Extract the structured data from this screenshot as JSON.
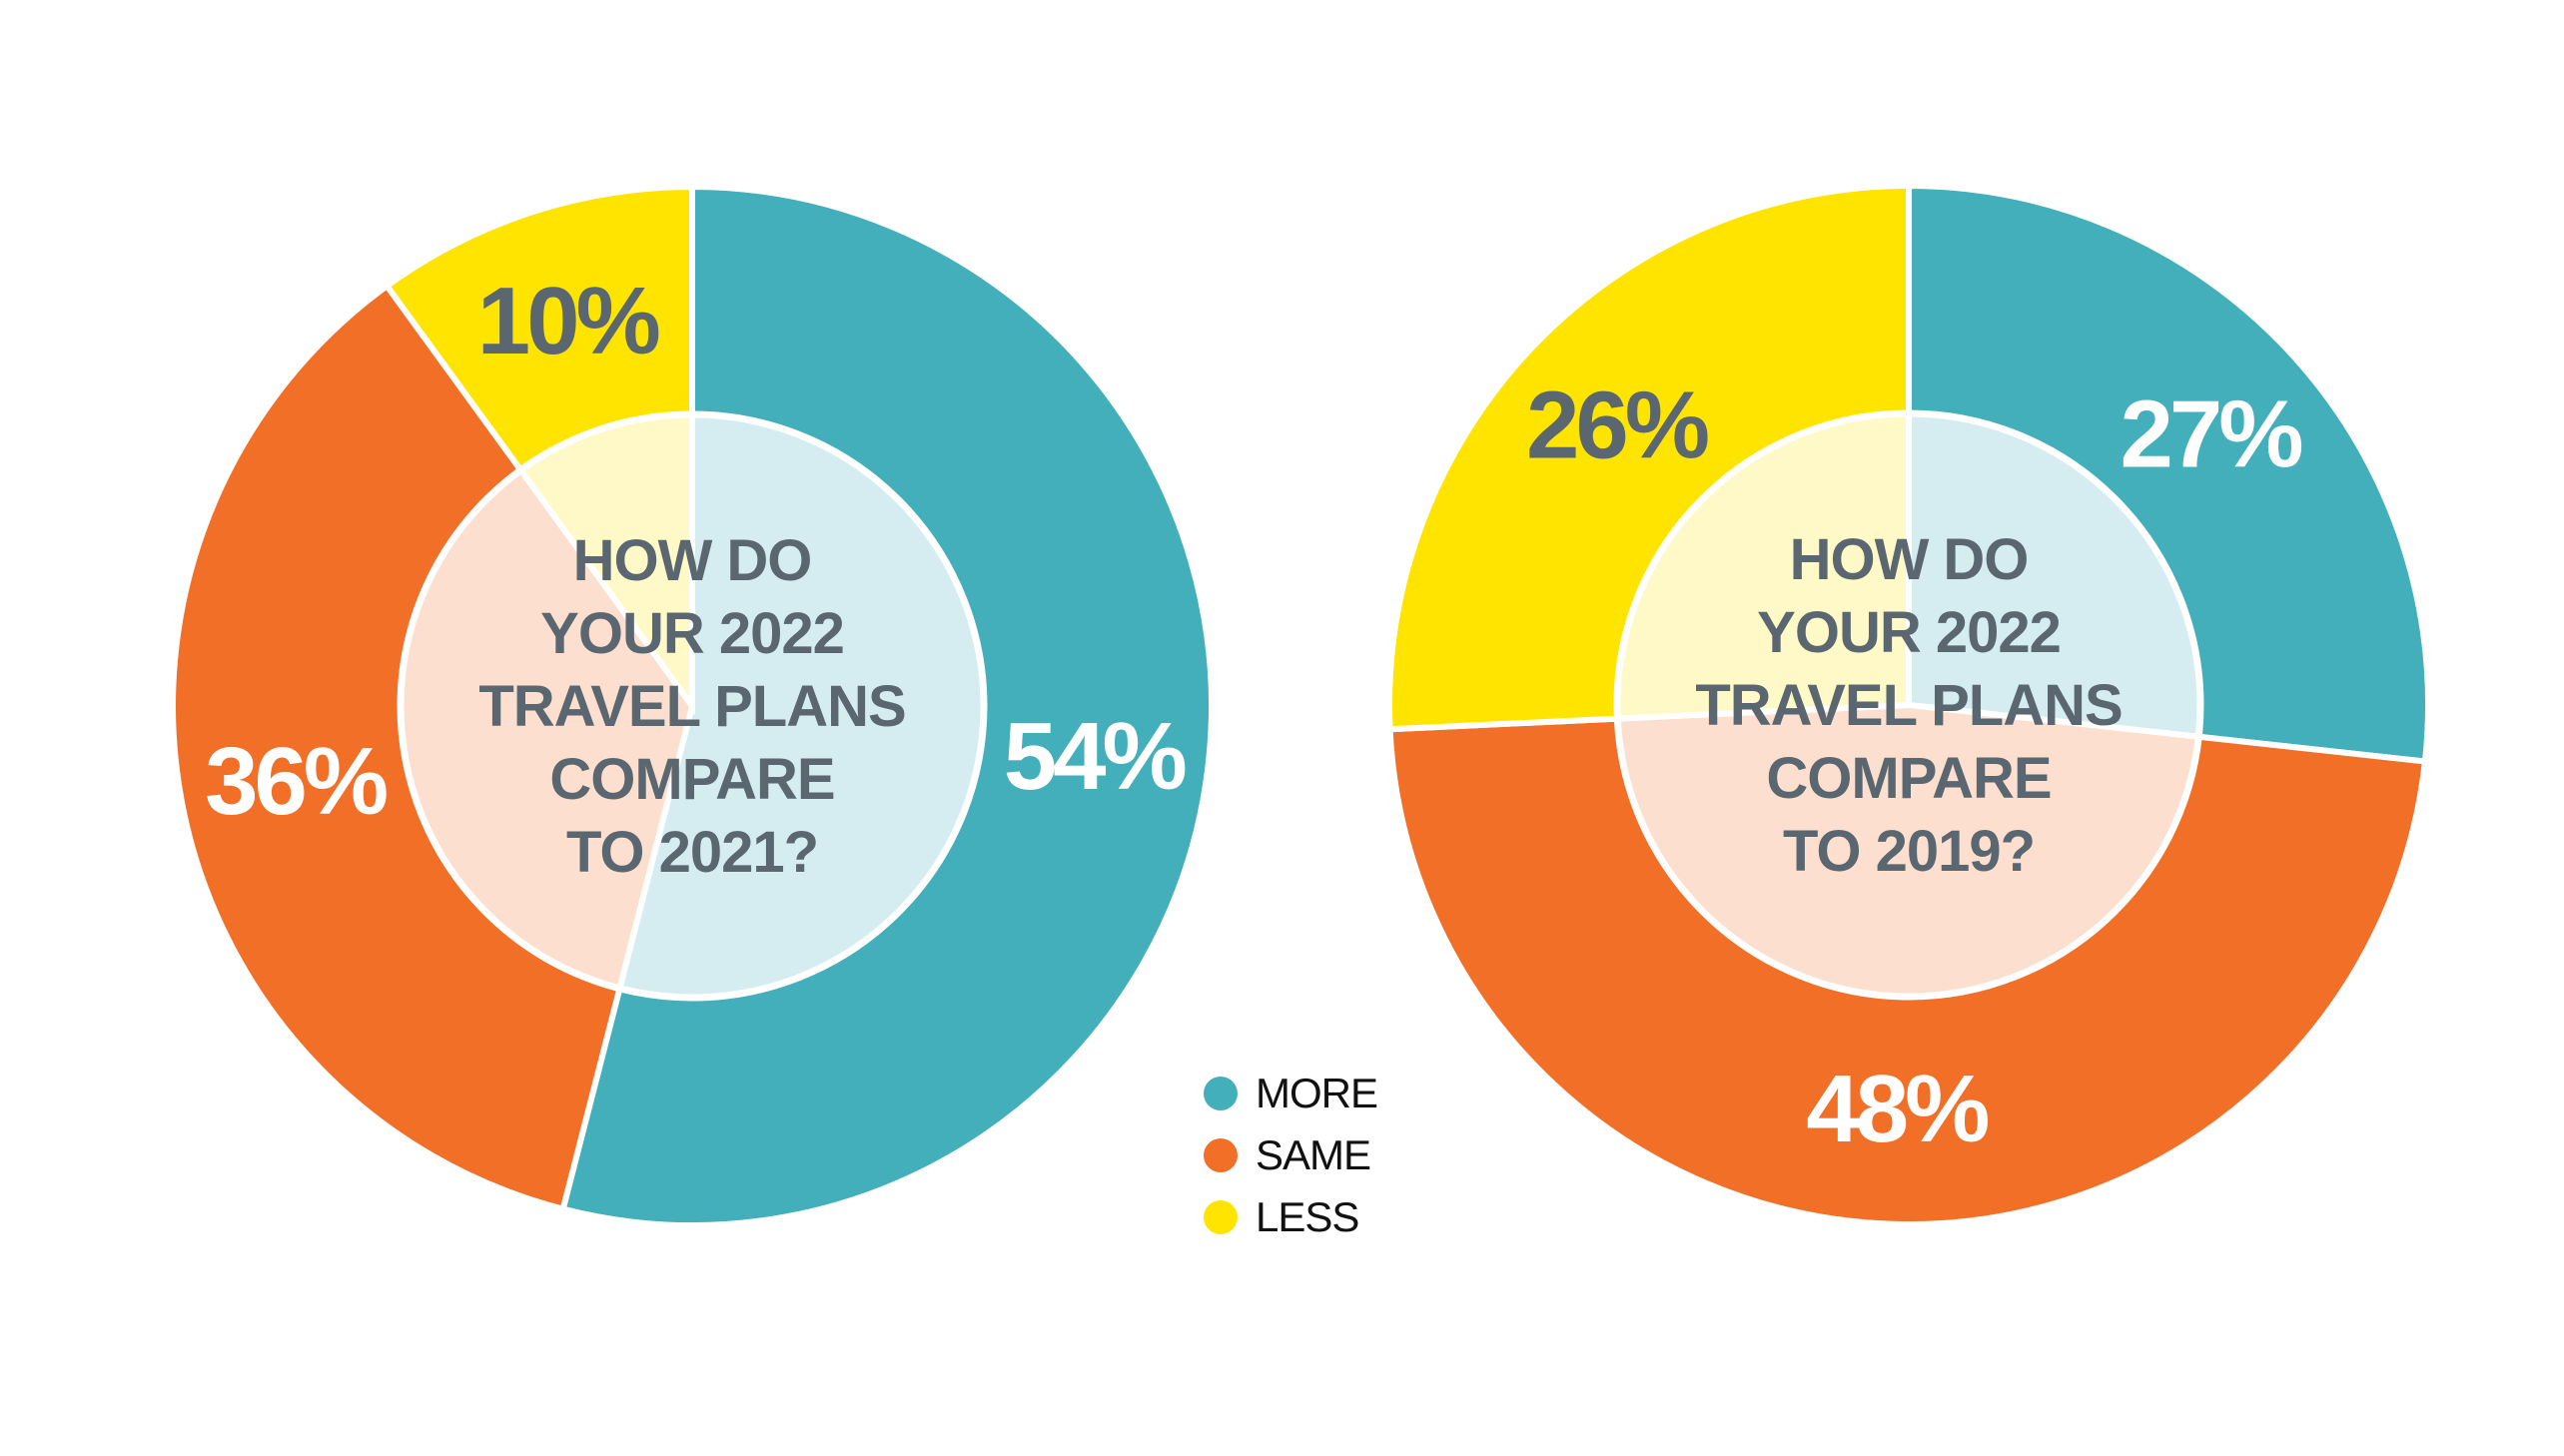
{
  "colors": {
    "more": "#42afba",
    "same": "#f26f27",
    "less": "#ffe400",
    "center_text": "#5a6771",
    "center_ring": "#ffffff"
  },
  "legend": [
    {
      "key": "more",
      "label": "MORE"
    },
    {
      "key": "same",
      "label": "SAME"
    },
    {
      "key": "less",
      "label": "LESS"
    }
  ],
  "chart_data": [
    {
      "type": "pie",
      "variant": "donut",
      "title": "HOW DO YOUR 2022 TRAVEL PLANS COMPARE TO 2021?",
      "title_lines": [
        "HOW DO",
        "YOUR 2022",
        "TRAVEL PLANS",
        "COMPARE",
        "TO 2021?"
      ],
      "categories": [
        "MORE",
        "SAME",
        "LESS"
      ],
      "values": [
        54,
        36,
        10
      ],
      "labels": [
        "54%",
        "36%",
        "10%"
      ],
      "label_colors": [
        "#ffffff",
        "#ffffff",
        "#5a6771"
      ],
      "legend": "bottom-center"
    },
    {
      "type": "pie",
      "variant": "donut",
      "title": "HOW DO YOUR 2022 TRAVEL PLANS COMPARE TO 2019?",
      "title_lines": [
        "HOW DO",
        "YOUR 2022",
        "TRAVEL PLANS",
        "COMPARE",
        "TO 2019?"
      ],
      "categories": [
        "MORE",
        "SAME",
        "LESS"
      ],
      "values": [
        27,
        48,
        26
      ],
      "labels": [
        "27%",
        "48%",
        "26%"
      ],
      "label_colors": [
        "#ffffff",
        "#ffffff",
        "#5a6771"
      ],
      "legend": "bottom-center"
    }
  ]
}
